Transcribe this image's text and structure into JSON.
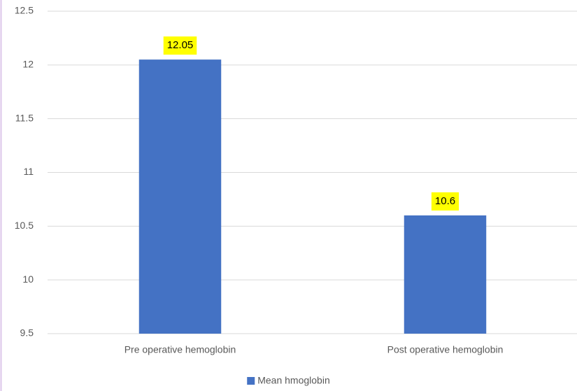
{
  "chart_data": {
    "type": "bar",
    "categories": [
      "Pre operative hemoglobin",
      "Post operative hemoglobin"
    ],
    "series": [
      {
        "name": "Mean hmoglobin",
        "color": "#4472c4",
        "values": [
          12.05,
          10.6
        ]
      }
    ],
    "ylim": [
      9.5,
      12.5
    ],
    "yticks": [
      9.5,
      10,
      10.5,
      11,
      11.5,
      12,
      12.5
    ],
    "grid": true,
    "legend": "bottom",
    "data_labels": true
  }
}
